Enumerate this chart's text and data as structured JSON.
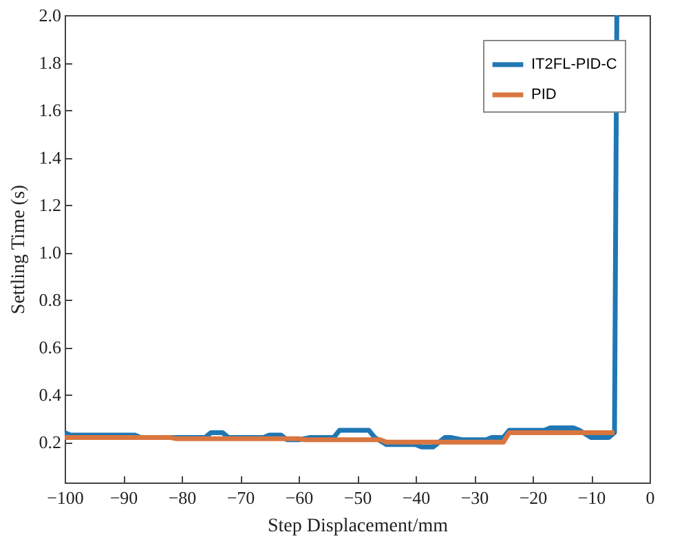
{
  "chart_data": {
    "type": "line",
    "xlabel": "Step Displacement/mm",
    "ylabel": "Settling Time (s)",
    "xlim": [
      -100,
      0
    ],
    "xticks": [
      -100,
      -90,
      -80,
      -70,
      -60,
      -50,
      -40,
      -30,
      -20,
      -10,
      0
    ],
    "ylim": [
      0.03,
      2.0
    ],
    "yticks": [
      {
        "value": 0.2,
        "label": "0.2"
      },
      {
        "value": 0.4,
        "label": "0.4"
      },
      {
        "value": 0.6,
        "label": "0.6"
      },
      {
        "value": 0.8,
        "label": "0.8"
      },
      {
        "value": 1.0,
        "label": "1.0"
      },
      {
        "value": 1.2,
        "label": "1.2"
      },
      {
        "value": 1.4,
        "label": "1.4"
      },
      {
        "value": 1.6,
        "label": "1.6"
      },
      {
        "value": 1.8,
        "label": "1.8"
      },
      {
        "value": 2.0,
        "label": "2.0"
      }
    ],
    "legend": "top right",
    "grid": false,
    "series": [
      {
        "name": "IT2FL-PID-C",
        "color": "#1f77b4",
        "x": [
          -100,
          -99,
          -88,
          -87,
          -76,
          -75,
          -73,
          -72,
          -66,
          -65,
          -63,
          -62,
          -60,
          -58,
          -54,
          -53,
          -48,
          -47,
          -45,
          -40,
          -39,
          -37,
          -35,
          -34,
          -32,
          -31,
          -28,
          -27,
          -25,
          -24,
          -20,
          -18,
          -17,
          -13,
          -12,
          -10,
          -7,
          -6,
          -5.6
        ],
        "values": [
          0.24,
          0.23,
          0.23,
          0.22,
          0.22,
          0.24,
          0.24,
          0.22,
          0.22,
          0.23,
          0.23,
          0.21,
          0.21,
          0.22,
          0.22,
          0.25,
          0.25,
          0.22,
          0.19,
          0.19,
          0.18,
          0.18,
          0.22,
          0.22,
          0.21,
          0.21,
          0.21,
          0.22,
          0.22,
          0.25,
          0.25,
          0.25,
          0.26,
          0.26,
          0.25,
          0.22,
          0.22,
          0.24,
          2.0
        ]
      },
      {
        "name": "PID",
        "color": "#d9763f",
        "x": [
          -100,
          -82,
          -81,
          -60,
          -59,
          -46,
          -45,
          -25,
          -24,
          -6
        ],
        "values": [
          0.22,
          0.22,
          0.215,
          0.215,
          0.21,
          0.21,
          0.2,
          0.2,
          0.24,
          0.24
        ]
      }
    ]
  }
}
